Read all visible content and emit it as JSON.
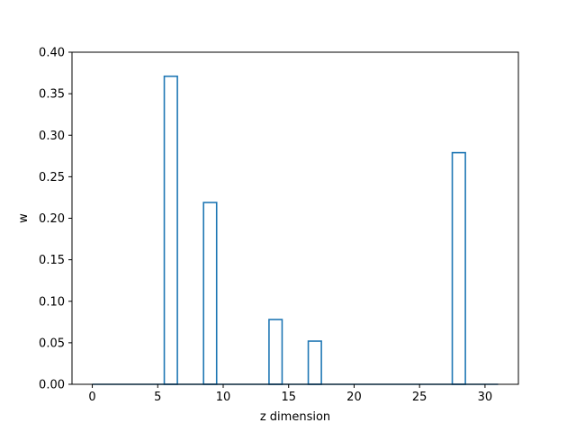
{
  "chart_data": {
    "type": "bar",
    "style": "step-histogram",
    "title": "",
    "xlabel": "z dimension",
    "ylabel": "w",
    "x": [
      0,
      1,
      2,
      3,
      4,
      5,
      6,
      7,
      8,
      9,
      10,
      11,
      12,
      13,
      14,
      15,
      16,
      17,
      18,
      19,
      20,
      21,
      22,
      23,
      24,
      25,
      26,
      27,
      28,
      29,
      30,
      31
    ],
    "values": [
      0,
      0,
      0,
      0,
      0,
      0,
      0.371,
      0,
      0,
      0.219,
      0,
      0,
      0,
      0,
      0.078,
      0,
      0,
      0.052,
      0,
      0,
      0,
      0,
      0,
      0,
      0,
      0,
      0,
      0,
      0.279,
      0,
      0,
      0
    ],
    "xlim": [
      -1.55,
      32.55
    ],
    "ylim": [
      0,
      0.4
    ],
    "xticks": [
      "0",
      "5",
      "10",
      "15",
      "20",
      "25",
      "30"
    ],
    "yticks": [
      "0.00",
      "0.05",
      "0.10",
      "0.15",
      "0.20",
      "0.25",
      "0.30",
      "0.35",
      "0.40"
    ],
    "line_color": "#1f77b4",
    "grid": false,
    "legend": "none"
  }
}
